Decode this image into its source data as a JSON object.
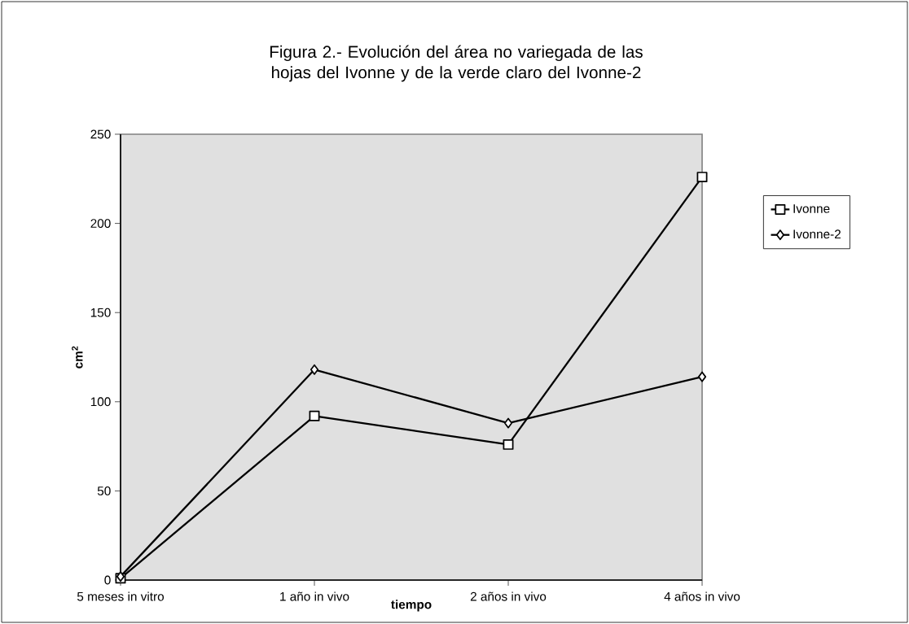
{
  "chart_data": {
    "type": "line",
    "title": "Figura 2.- Evolución del área no variegada de las hojas del Ivonne y de la verde claro del Ivonne-2",
    "xlabel": "tiempo",
    "ylabel": "cm$^{2}$",
    "categories": [
      "5 meses in vitro",
      "1 año in vivo",
      "2 años in vivo",
      "4 años in vivo"
    ],
    "series": [
      {
        "name": "Ivonne",
        "color": "#000000",
        "marker": "square",
        "values": [
          1,
          92,
          76,
          226
        ]
      },
      {
        "name": "Ivonne-2",
        "color": "#000000",
        "marker": "diamond",
        "values": [
          2,
          118,
          88,
          114
        ]
      }
    ],
    "ylim": [
      0,
      250
    ],
    "yticks": [
      0,
      50,
      100,
      150,
      200,
      250
    ],
    "legend": "right",
    "line_style": "solid"
  }
}
